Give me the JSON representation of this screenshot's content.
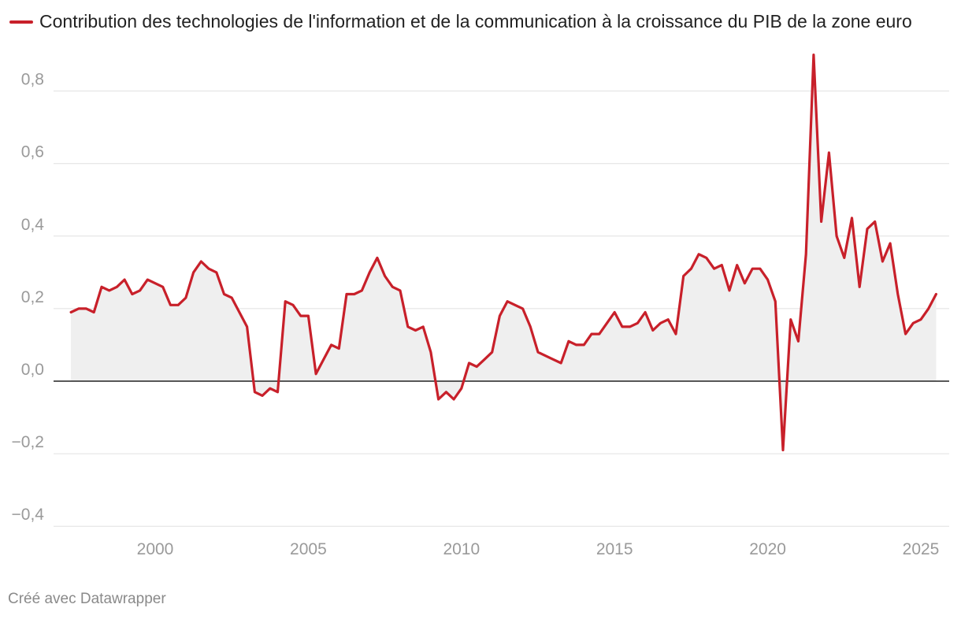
{
  "colors": {
    "line": "#c8202a",
    "area": "#efefef",
    "grid": "#e0e0e0",
    "zero": "#222222",
    "tick": "#9a9a9a"
  },
  "legend": {
    "label": "Contribution des technologies de l'information et de la communication à la croissance du PIB de la zone euro"
  },
  "footer": {
    "credit": "Créé avec Datawrapper"
  },
  "chart_data": {
    "type": "area",
    "title": "",
    "xlabel": "",
    "ylabel": "",
    "xlim": [
      1997.0,
      2025.75
    ],
    "ylim": [
      -0.4,
      0.9
    ],
    "grid": true,
    "legend_position": "top-left",
    "y_ticks": [
      0.8,
      0.6,
      0.4,
      0.2,
      0.0,
      -0.2,
      -0.4
    ],
    "y_tick_labels": [
      "0,8",
      "0,6",
      "0,4",
      "0,2",
      "0,0",
      "−0,2",
      "−0,4"
    ],
    "x_ticks": [
      2000,
      2005,
      2010,
      2015,
      2020,
      2025
    ],
    "x_tick_labels": [
      "2000",
      "2005",
      "2010",
      "2015",
      "2020",
      "2025"
    ],
    "series": [
      {
        "name": "Contribution des technologies de l'information et de la communication à la croissance du PIB de la zone euro",
        "x_start": 1997.25,
        "x_step": 0.25,
        "values": [
          0.19,
          0.2,
          0.2,
          0.19,
          0.26,
          0.25,
          0.26,
          0.28,
          0.24,
          0.25,
          0.28,
          0.27,
          0.26,
          0.21,
          0.21,
          0.23,
          0.3,
          0.33,
          0.31,
          0.3,
          0.24,
          0.23,
          0.19,
          0.15,
          -0.03,
          -0.04,
          -0.02,
          -0.03,
          0.22,
          0.21,
          0.18,
          0.18,
          0.02,
          0.06,
          0.1,
          0.09,
          0.24,
          0.24,
          0.25,
          0.3,
          0.34,
          0.29,
          0.26,
          0.25,
          0.15,
          0.14,
          0.15,
          0.08,
          -0.05,
          -0.03,
          -0.05,
          -0.02,
          0.05,
          0.04,
          0.06,
          0.08,
          0.18,
          0.22,
          0.21,
          0.2,
          0.15,
          0.08,
          0.07,
          0.06,
          0.05,
          0.11,
          0.1,
          0.1,
          0.13,
          0.13,
          0.16,
          0.19,
          0.15,
          0.15,
          0.16,
          0.19,
          0.14,
          0.16,
          0.17,
          0.13,
          0.29,
          0.31,
          0.35,
          0.34,
          0.31,
          0.32,
          0.25,
          0.32,
          0.27,
          0.31,
          0.31,
          0.28,
          0.22,
          -0.19,
          0.17,
          0.11,
          0.35,
          0.9,
          0.44,
          0.63,
          0.4,
          0.34,
          0.45,
          0.26,
          0.42,
          0.44,
          0.33,
          0.38,
          0.24,
          0.13,
          0.16,
          0.17,
          0.2,
          0.24
        ]
      }
    ]
  }
}
